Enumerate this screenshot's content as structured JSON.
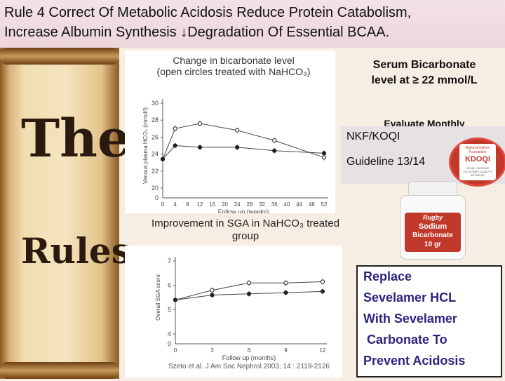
{
  "slide": {
    "title_line1": "Rule 4 Correct Of Metabolic Acidosis Reduce Protein Catabolism,",
    "title_line2": "Increase Albumin Synthesis ↓Degradation Of Essential BCAA.",
    "rules_word1": "The",
    "rules_word2": "Rules"
  },
  "chart1": {
    "title_line1": "Change in bicarbonate level",
    "title_line2": "(open circles treated with NaHCO₃)",
    "ylabel": "Venous plasma HCO₃ (mmol/l)",
    "xlabel": "Follow up (weeks)",
    "yticks": [
      "30",
      "28",
      "26",
      "24",
      "22",
      "20",
      "0"
    ],
    "xticks": [
      "0",
      "4",
      "8",
      "12",
      "16",
      "20",
      "24",
      "28",
      "32",
      "36",
      "40",
      "44",
      "48",
      "52"
    ]
  },
  "chart2": {
    "caption_line1": "Improvement in SGA in NaHCO₃ treated",
    "caption_line2": "group",
    "ylabel": "Overall SGA score",
    "xlabel": "Follow up (months)",
    "yticks": [
      "7",
      "6",
      "5",
      "4",
      "0"
    ],
    "xticks": [
      "0",
      "3",
      "6",
      "9",
      "12"
    ],
    "citation": "Szeto et al. J Am Soc Nephrol 2003; 14 : 2119-2126"
  },
  "chart_data": [
    {
      "type": "line",
      "title": "Change in bicarbonate level",
      "xlabel": "Follow up (weeks)",
      "ylabel": "Venous plasma HCO₃ (mmol/l)",
      "x": [
        0,
        4,
        12,
        24,
        36,
        52
      ],
      "ylim": [
        20,
        30
      ],
      "series": [
        {
          "values": [
            23.4,
            27.0,
            27.6,
            26.8,
            25.6,
            23.6
          ]
        },
        {
          "values": [
            23.4,
            25.0,
            24.8,
            24.8,
            24.4,
            24.1
          ]
        }
      ]
    },
    {
      "type": "line",
      "xlabel": "Follow up (months)",
      "ylabel": "Overall SGA score",
      "x": [
        0,
        3,
        6,
        9,
        12
      ],
      "ylim": [
        4,
        7
      ],
      "series": [
        {
          "values": [
            5.4,
            5.8,
            6.1,
            6.1,
            6.15
          ]
        },
        {
          "values": [
            5.4,
            5.6,
            5.65,
            5.7,
            5.75
          ]
        }
      ]
    }
  ],
  "sidebar": {
    "serum_line1": "Serum Bicarbonate",
    "serum_line2": "level at ≥ 22 mmol/L",
    "evaluate": "Evaluate Monthly",
    "nkf": "NKF/KOQI",
    "guideline": "Guideline 13/14",
    "logo_top": "National Kidney Foundation",
    "logo_main": "KDOQI",
    "logo_sub": "KIDNEY DISEASE OUTCOMES QUALITY INITIATIVE",
    "bottle_brand": "Rugby",
    "bottle_line1": "Sodium",
    "bottle_line2": "Bicarbonate",
    "bottle_line3": "10 gr",
    "replace_lines": [
      "Replace",
      "Sevelamer HCL",
      "With Sevelamer",
      " Carbonate To",
      "Prevent Acidosis"
    ]
  },
  "colors": {
    "accent_text": "#2c2580",
    "logo_red": "#c0392b",
    "title_bg": "#f0dce2"
  }
}
